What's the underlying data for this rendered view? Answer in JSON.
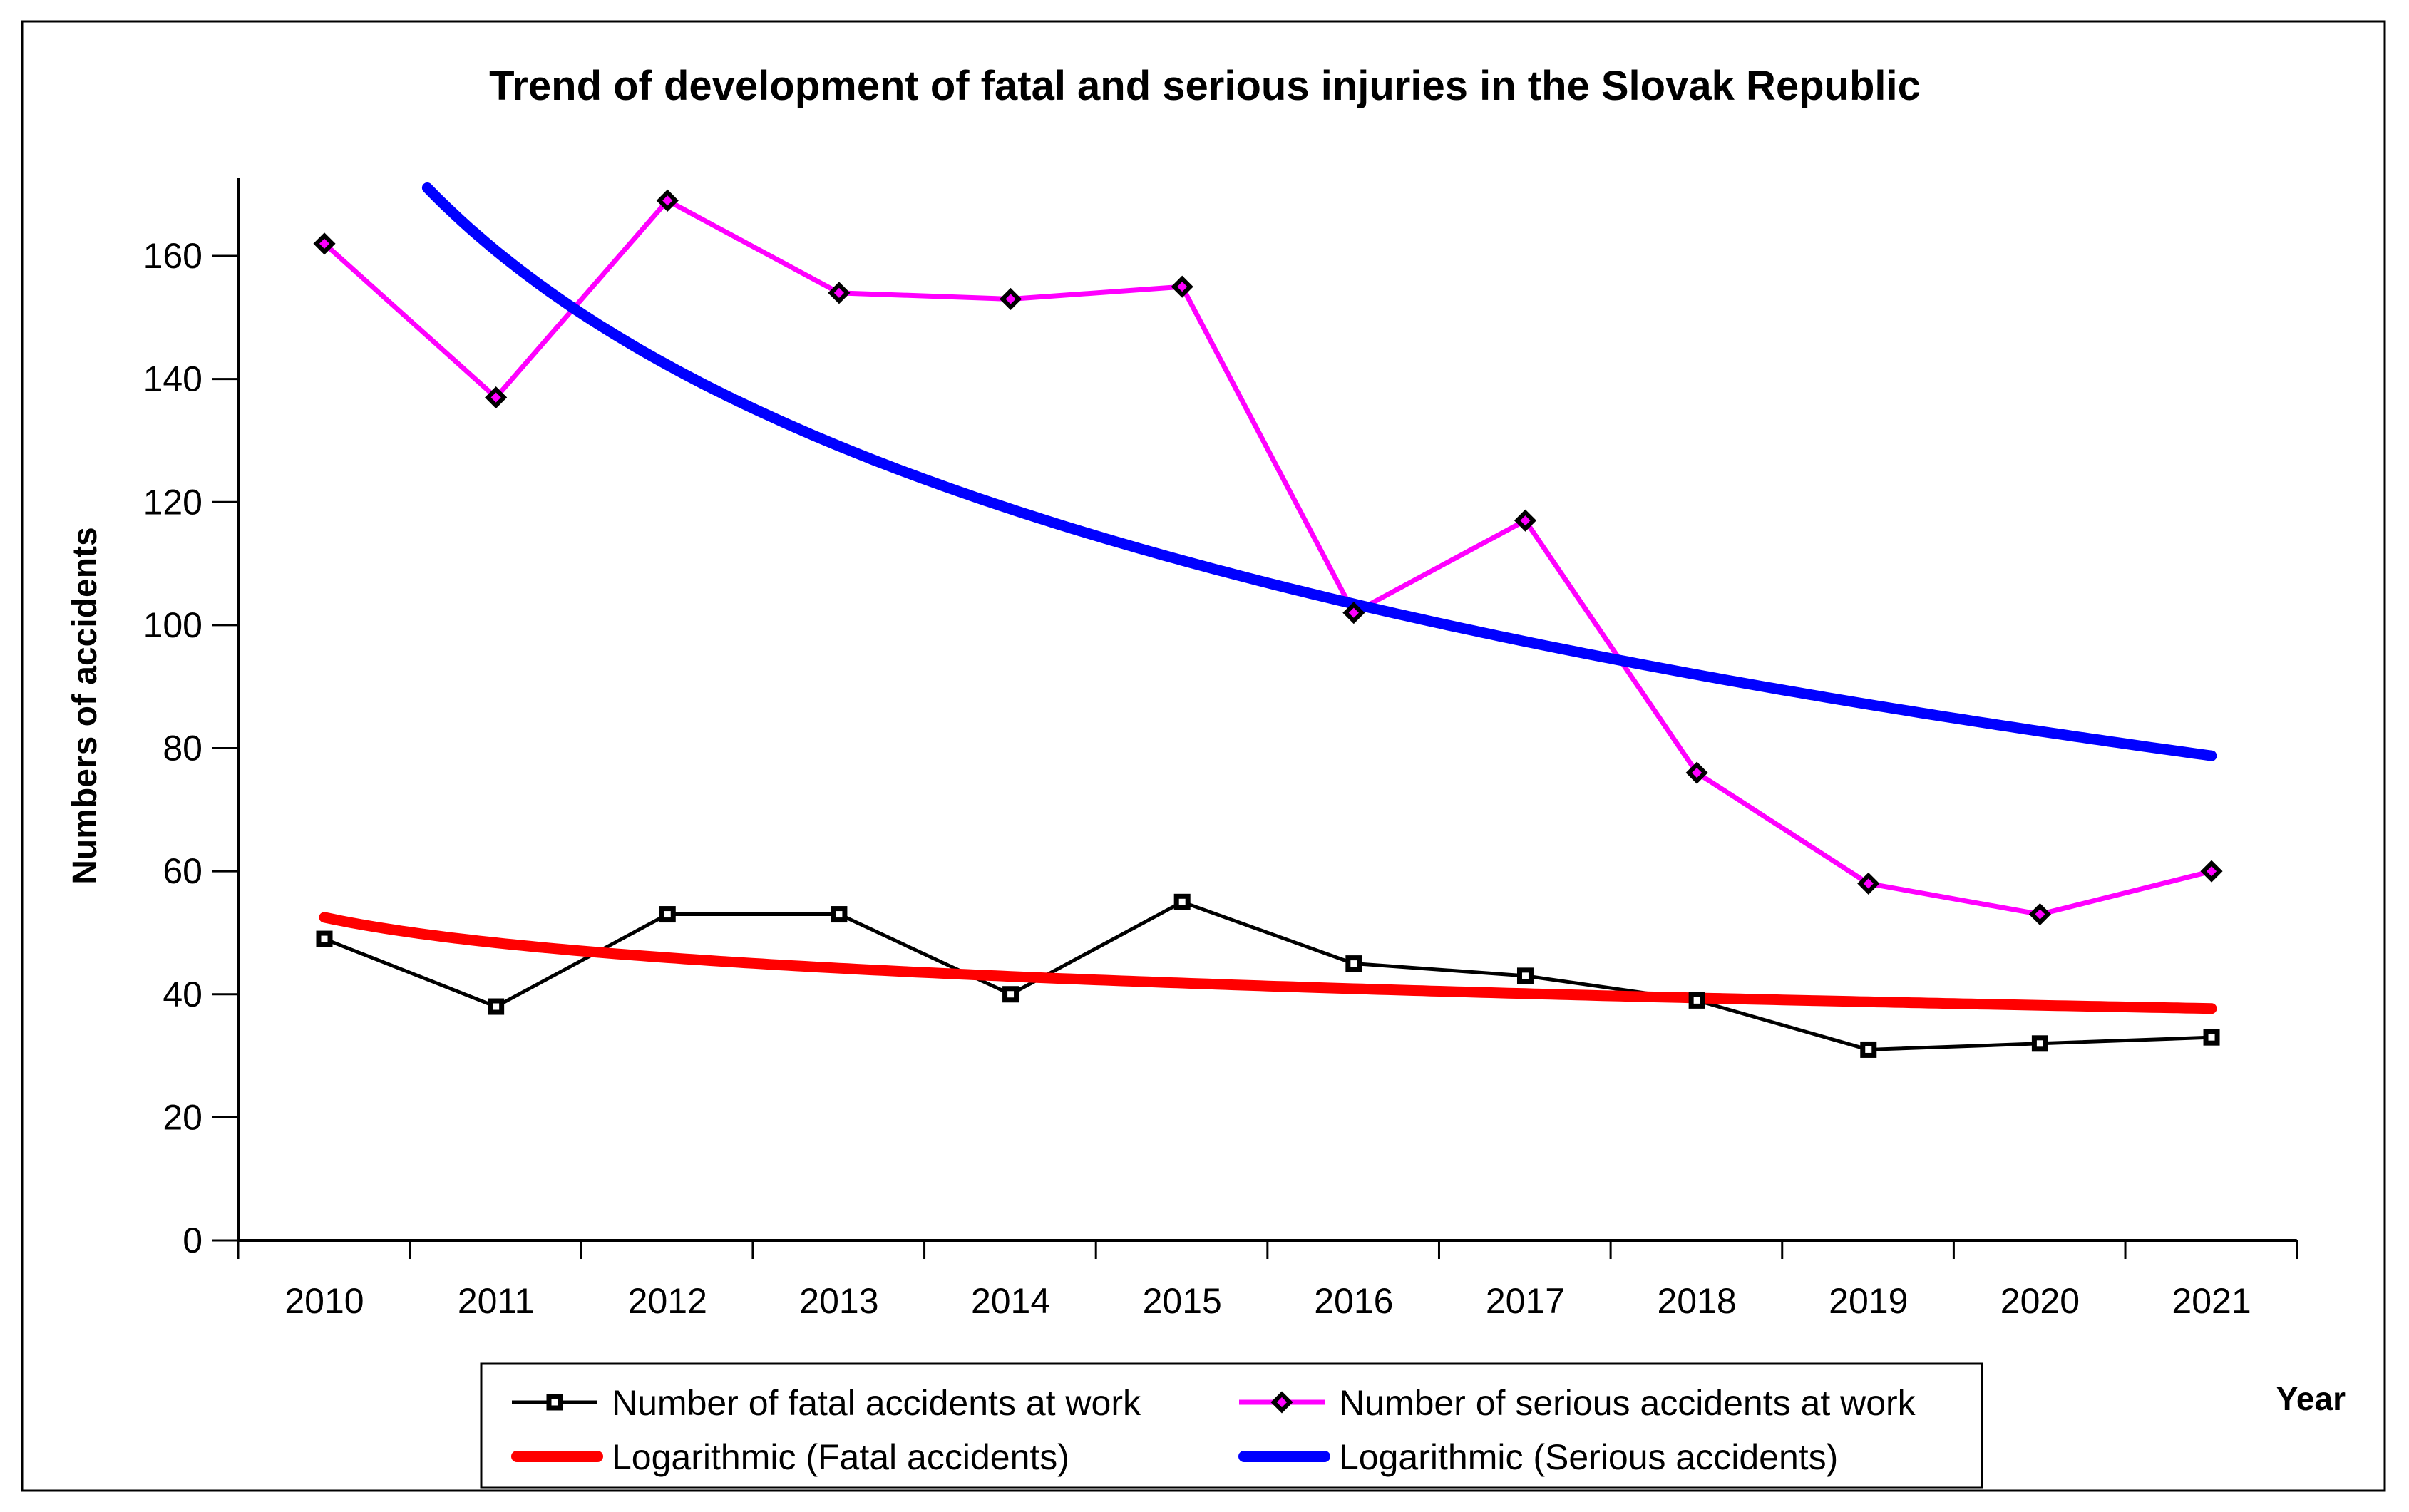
{
  "chart_data": {
    "type": "line",
    "title": "Trend of development of fatal and serious injuries in the Slovak Republic",
    "xlabel": "Year",
    "ylabel": "Numbers of accidents",
    "categories": [
      2010,
      2011,
      2012,
      2013,
      2014,
      2015,
      2016,
      2017,
      2018,
      2019,
      2020,
      2021
    ],
    "series": [
      {
        "name": "Number of fatal accidents at work",
        "type": "line",
        "color": "#000000",
        "marker": "square",
        "values": [
          49,
          38,
          53,
          53,
          40,
          55,
          45,
          43,
          39,
          31,
          32,
          33
        ]
      },
      {
        "name": "Number of serious accidents at work",
        "type": "line",
        "color": "#FF00FF",
        "marker": "diamond",
        "values": [
          162,
          137,
          169,
          154,
          153,
          155,
          102,
          117,
          76,
          58,
          53,
          60
        ]
      },
      {
        "name": "Logarithmic (Fatal accidents)",
        "type": "logarithmic_trend",
        "color": "#FF0000",
        "trend_a": 52.5,
        "trend_b": -5.96,
        "end_value": 37.7
      },
      {
        "name": "Logarithmic (Serious accidents)",
        "type": "logarithmic_trend",
        "color": "#0000FF",
        "trend_a": 192.6,
        "trend_b": -45.81,
        "end_value": 78.8
      }
    ],
    "yticks": [
      0,
      20,
      40,
      60,
      80,
      100,
      120,
      140,
      160
    ],
    "ylim": [
      0,
      172
    ],
    "grid": false,
    "legend_position": "bottom",
    "colors": {
      "fatal_line": "#000000",
      "serious_line": "#FF00FF",
      "log_fatal": "#FF0000",
      "log_serious": "#0000FF",
      "background": "#FFFFFF",
      "border": "#000000"
    }
  }
}
